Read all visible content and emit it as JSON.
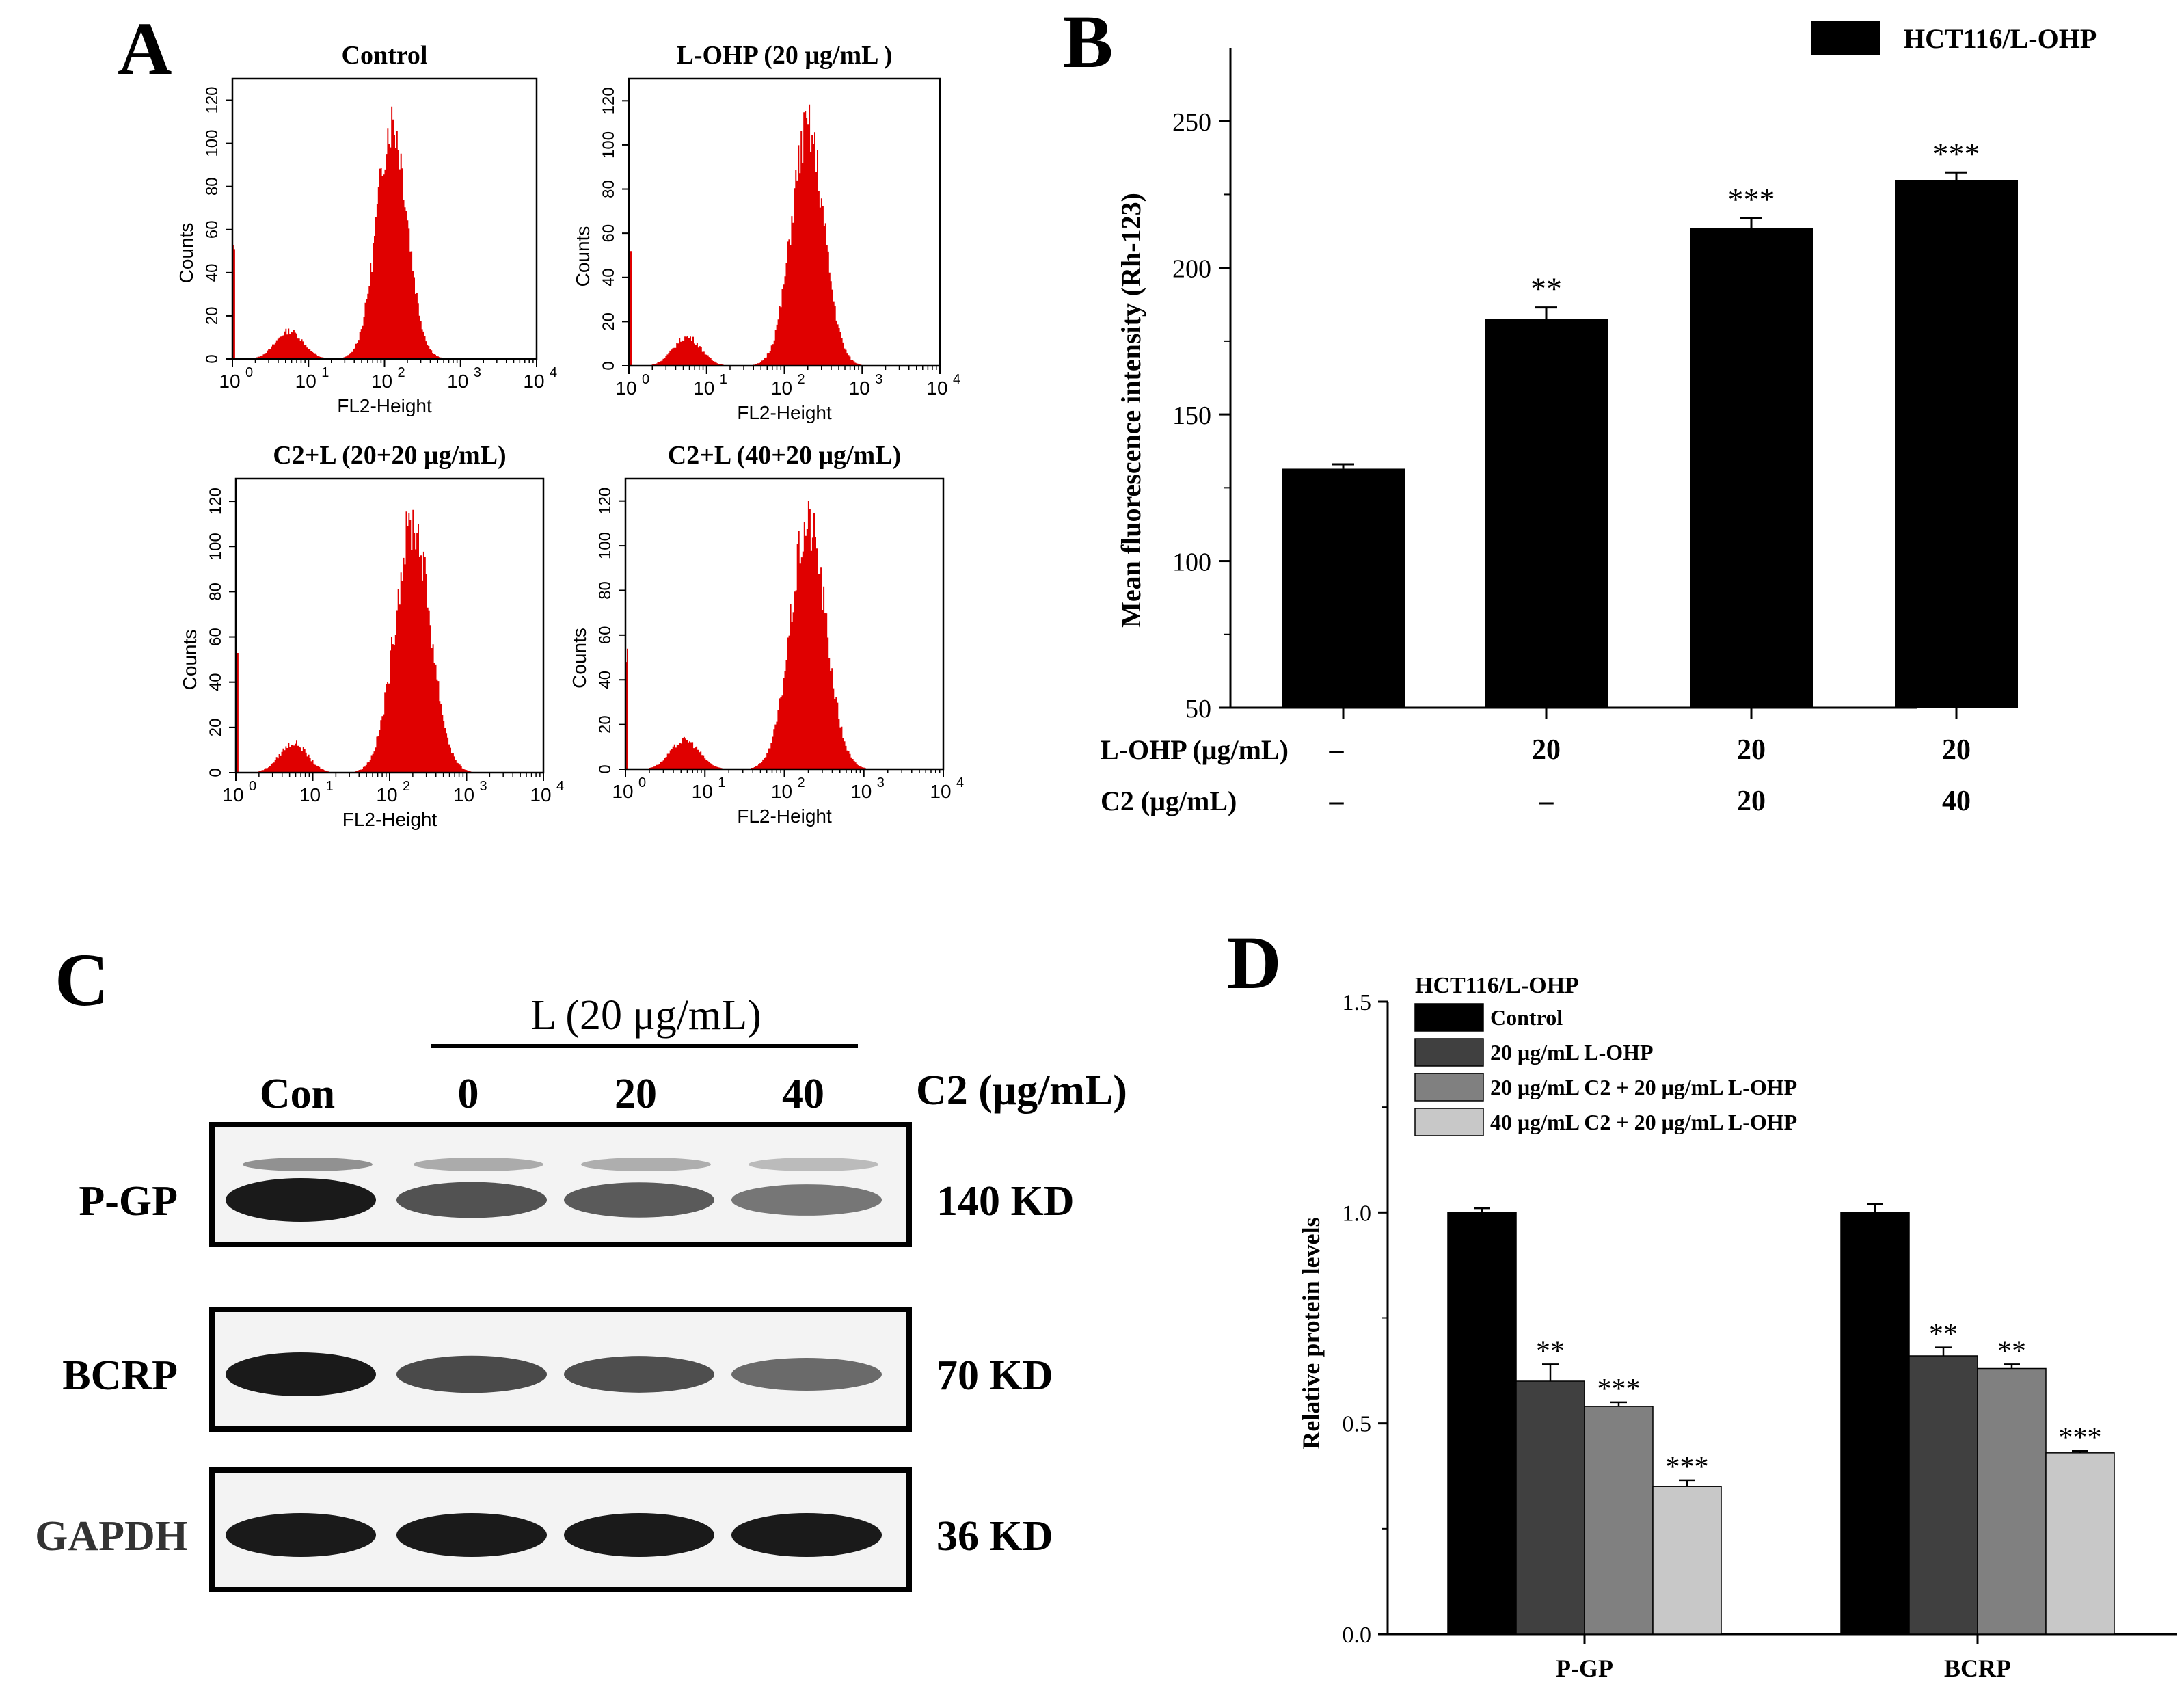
{
  "colors": {
    "histogram_fill": "#e00000",
    "bar_black": "#000000",
    "bar_dark": "#404040",
    "bar_mid": "#808080",
    "bar_light": "#c8c8c8",
    "blot_bg": "#f3f3f3",
    "blot_band": "#1a1a1a"
  },
  "chart_data": [
    {
      "panel": "A",
      "type": "histogram",
      "xlabel": "FL2-Height",
      "ylabel": "Counts",
      "x_scale": "log",
      "x_ticks": [
        "10",
        "10",
        "10",
        "10",
        "10"
      ],
      "x_tick_exponents": [
        "0",
        "1",
        "2",
        "3",
        "4"
      ],
      "y_ticks": [
        "0",
        "20",
        "40",
        "60",
        "80",
        "100",
        "120"
      ],
      "ylim": [
        0,
        130
      ],
      "xlim_log10": [
        0,
        4
      ],
      "plots": [
        {
          "title": "Control",
          "peak_log10": 2.1,
          "peak_count": 110,
          "width": 0.2
        },
        {
          "title": "L-OHP (20 μg/mL )",
          "peak_log10": 2.3,
          "peak_count": 107,
          "width": 0.21
        },
        {
          "title": "C2+L (20+20 μg/mL)",
          "peak_log10": 2.3,
          "peak_count": 110,
          "width": 0.23
        },
        {
          "title": "C2+L (40+20 μg/mL)",
          "peak_log10": 2.3,
          "peak_count": 110,
          "width": 0.22
        }
      ]
    },
    {
      "panel": "B",
      "type": "bar",
      "legend": "HCT116/L-OHP",
      "legend_position": "top-right",
      "ylabel": "Mean fluorescence intensity (Rh-123)",
      "ylim": [
        50,
        275
      ],
      "y_ticks": [
        "50",
        "100",
        "150",
        "200",
        "250"
      ],
      "values": [
        131.5,
        182.5,
        213.5,
        230.0
      ],
      "errors": [
        1.5,
        4.0,
        3.5,
        2.5
      ],
      "significance": [
        "",
        "**",
        "***",
        "***"
      ],
      "row_labels": [
        "L-OHP (μg/mL)",
        "C2 (μg/mL)"
      ],
      "row1": [
        "–",
        "20",
        "20",
        "20"
      ],
      "row2": [
        "–",
        "–",
        "20",
        "40"
      ]
    },
    {
      "panel": "C",
      "type": "western_blot",
      "header_group": "L (20 μg/mL)",
      "lanes": [
        "Con",
        "0",
        "20",
        "40"
      ],
      "lane_unit": "C2 (μg/mL)",
      "rows": [
        {
          "protein": "P-GP",
          "size": "140 KD",
          "intensity": [
            1.0,
            0.6,
            0.55,
            0.35
          ]
        },
        {
          "protein": "BCRP",
          "size": "70 KD",
          "intensity": [
            1.0,
            0.66,
            0.63,
            0.43
          ]
        },
        {
          "protein": "GAPDH",
          "size": "36 KD",
          "intensity": [
            1.0,
            1.0,
            1.0,
            1.0
          ]
        }
      ]
    },
    {
      "panel": "D",
      "type": "bar",
      "title": "HCT116/L-OHP",
      "ylabel": "Relative protein levels",
      "ylim": [
        0.0,
        1.5
      ],
      "y_ticks": [
        "0.0",
        "0.5",
        "1.0",
        "1.5"
      ],
      "categories": [
        "P-GP",
        "BCRP"
      ],
      "legend_position": "top-left",
      "series": [
        {
          "name": "Control",
          "values": [
            1.0,
            1.0
          ],
          "errors": [
            0.01,
            0.02
          ],
          "significance": [
            "",
            ""
          ]
        },
        {
          "name": "20 μg/mL L-OHP",
          "values": [
            0.6,
            0.66
          ],
          "errors": [
            0.04,
            0.02
          ],
          "significance": [
            "**",
            "**"
          ]
        },
        {
          "name": "20 μg/mL C2 + 20 μg/mL L-OHP",
          "values": [
            0.54,
            0.63
          ],
          "errors": [
            0.01,
            0.01
          ],
          "significance": [
            "***",
            "**"
          ]
        },
        {
          "name": "40 μg/mL C2 + 20 μg/mL L-OHP",
          "values": [
            0.35,
            0.43
          ],
          "errors": [
            0.015,
            0.005
          ],
          "significance": [
            "***",
            "***"
          ]
        }
      ]
    }
  ],
  "panel_letters": [
    "A",
    "B",
    "C",
    "D"
  ]
}
